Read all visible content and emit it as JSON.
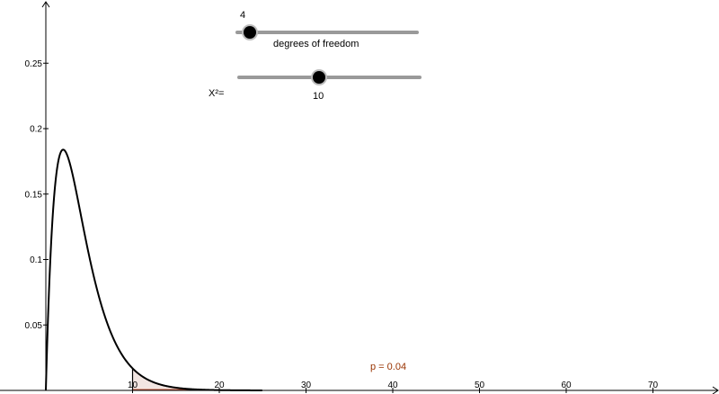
{
  "dof_slider": {
    "value": "4",
    "label": "degrees of freedom",
    "min": 1,
    "max": 10,
    "current": 4
  },
  "chi_slider": {
    "prefix": "X²=",
    "value": "10",
    "min": 0,
    "max": 40,
    "current": 10
  },
  "p_label": "p = 0.04",
  "chart_data": {
    "type": "area",
    "x_ticks": [
      "10",
      "20",
      "30",
      "40",
      "50",
      "60",
      "70"
    ],
    "y_ticks": [
      "0.05",
      "0.1",
      "0.15",
      "0.2",
      "0.25"
    ],
    "xlim": [
      0,
      78
    ],
    "ylim": [
      0,
      0.298
    ],
    "grid": false,
    "curve": "chi-square pdf, df = 4",
    "shaded_from_x": 10,
    "colors": {
      "curve": "#000000",
      "shade": "#f2e6e2",
      "p_text": "#993300"
    }
  }
}
